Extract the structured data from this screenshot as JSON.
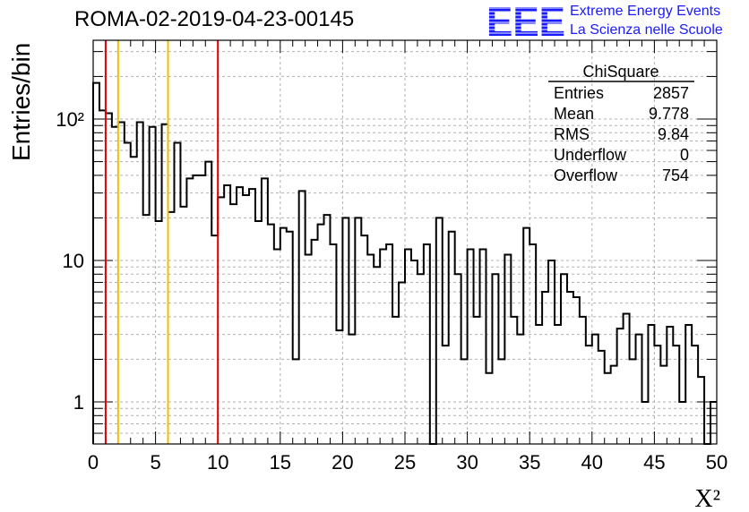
{
  "header": {
    "title": "ROMA-02-2019-04-23-00145",
    "logo_letters": "EEE",
    "logo_line1": "Extreme Energy Events",
    "logo_line2": "La Scienza nelle Scuole",
    "logo_color": "#1a1aff"
  },
  "stats_box": {
    "name": "ChiSquare",
    "rows": [
      {
        "label": "Entries",
        "value": "2857"
      },
      {
        "label": "Mean",
        "value": "9.778"
      },
      {
        "label": "RMS",
        "value": "9.84"
      },
      {
        "label": "Underflow",
        "value": "0"
      },
      {
        "label": "Overflow",
        "value": "754"
      }
    ]
  },
  "chart_data": {
    "type": "bar",
    "title": "ROMA-02-2019-04-23-00145",
    "xlabel": "X²",
    "ylabel": "Entries/bin",
    "xlim": [
      0,
      50
    ],
    "ylim": [
      0.5,
      350
    ],
    "yscale": "log",
    "grid": true,
    "bin_width": 0.5,
    "x_ticks": [
      0,
      5,
      10,
      15,
      20,
      25,
      30,
      35,
      40,
      45,
      50
    ],
    "y_ticks": [
      {
        "value": 1,
        "label": "1"
      },
      {
        "value": 10,
        "label": "10"
      },
      {
        "value": 100,
        "label": "10²"
      }
    ],
    "values": [
      180,
      115,
      110,
      88,
      95,
      68,
      54,
      95,
      21,
      88,
      19,
      92,
      22,
      68,
      24,
      38,
      40,
      40,
      50,
      15,
      28,
      34,
      25,
      33,
      29,
      32,
      19,
      38,
      18,
      12,
      17,
      16,
      2,
      31,
      11,
      14,
      18,
      21,
      13,
      3.2,
      20,
      3,
      20,
      15,
      11,
      9,
      12,
      13,
      4,
      7,
      12,
      10,
      8,
      13,
      0.5,
      20,
      2.5,
      16,
      8,
      2,
      12,
      4,
      12,
      1.6,
      8,
      2,
      11,
      4,
      3,
      17,
      13,
      3.5,
      6,
      10,
      3.5,
      8,
      6,
      5.5,
      4,
      2.5,
      3,
      2.3,
      1.6,
      1.8,
      3.3,
      4.2,
      2,
      3,
      1,
      3.5,
      2.5,
      1.8,
      3.4,
      2.5,
      1,
      3.5,
      2.5,
      1.5,
      0.5,
      1
    ],
    "vertical_lines": [
      {
        "x": 1,
        "color": "#e00000",
        "style": "solid"
      },
      {
        "x": 2,
        "color": "#f0c000",
        "style": "solid"
      },
      {
        "x": 6,
        "color": "#f0c000",
        "style": "solid"
      },
      {
        "x": 10,
        "color": "#000000",
        "style": "dashed"
      },
      {
        "x": 10,
        "color": "#e00000",
        "style": "solid"
      }
    ]
  }
}
